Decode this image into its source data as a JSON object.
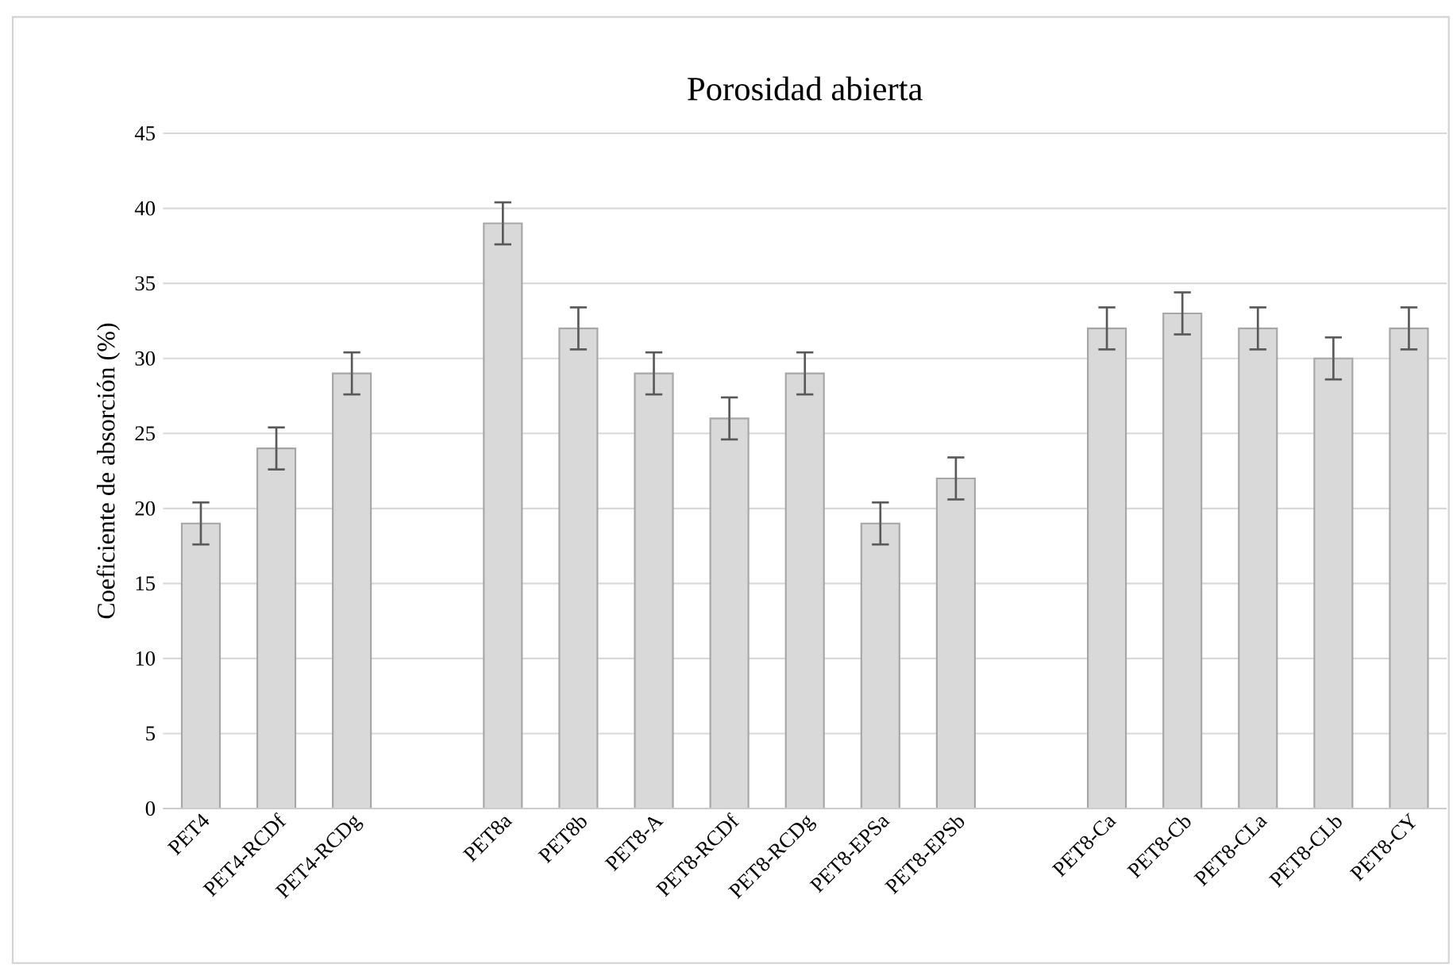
{
  "chart_data": {
    "type": "bar",
    "title": "Porosidad abierta",
    "ylabel": "Coeficiente de absorción (%)",
    "categories": [
      "PET4",
      "PET4-RCDf",
      "PET4-RCDg",
      null,
      "PET8a",
      "PET8b",
      "PET8-A",
      "PET8-RCDf",
      "PET8-RCDg",
      "PET8-EPSa",
      "PET8-EPSb",
      null,
      "PET8-Ca",
      "PET8-Cb",
      "PET8-CLa",
      "PET8-CLb",
      "PET8-CY"
    ],
    "values": [
      19,
      24,
      29,
      null,
      39,
      32,
      29,
      26,
      29,
      19,
      22,
      null,
      32,
      33,
      32,
      30,
      32
    ],
    "errors": [
      1.4,
      1.4,
      1.4,
      null,
      1.4,
      1.4,
      1.4,
      1.4,
      1.4,
      1.4,
      1.4,
      null,
      1.4,
      1.4,
      1.4,
      1.4,
      1.4
    ],
    "color": "#d9d9d9",
    "ylim": [
      0,
      45
    ],
    "yticks": [
      0,
      5,
      10,
      15,
      20,
      25,
      30,
      35,
      40,
      45
    ],
    "grid": "y"
  }
}
